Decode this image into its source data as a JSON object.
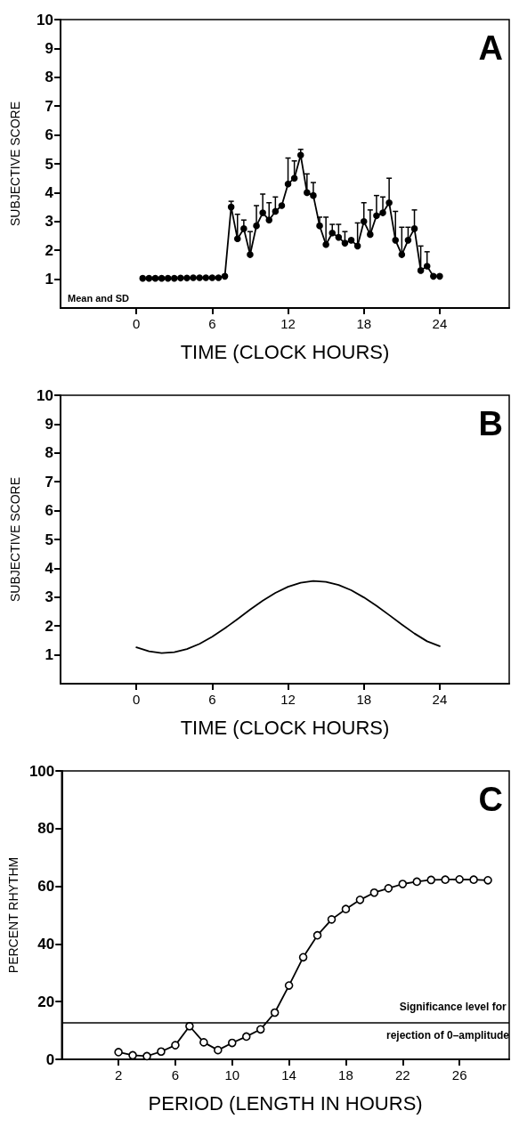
{
  "chart_data": [
    {
      "type": "line",
      "title": "A",
      "xlabel": "TIME (CLOCK HOURS)",
      "ylabel": "SUBJECTIVE SCORE",
      "annotations": [
        "Mean and SD"
      ],
      "x": [
        0.5,
        1,
        1.5,
        2,
        2.5,
        3,
        3.5,
        4,
        4.5,
        5,
        5.5,
        6,
        6.5,
        7,
        7.5,
        8,
        8.5,
        9,
        9.5,
        10,
        10.5,
        11,
        11.5,
        12,
        12.5,
        13,
        13.5,
        14,
        14.5,
        15,
        15.5,
        16,
        16.5,
        17,
        17.5,
        18,
        18.5,
        19,
        19.5,
        20,
        20.5,
        21,
        21.5,
        22,
        22.5,
        23,
        23.5,
        24
      ],
      "series": [
        {
          "color": "#000000",
          "values": [
            1.03,
            1.03,
            1.03,
            1.03,
            1.03,
            1.03,
            1.04,
            1.04,
            1.05,
            1.05,
            1.05,
            1.05,
            1.05,
            1.1,
            3.5,
            2.4,
            2.75,
            1.85,
            2.85,
            3.3,
            3.05,
            3.35,
            3.55,
            4.3,
            4.5,
            5.3,
            4.0,
            3.9,
            2.85,
            2.2,
            2.6,
            2.45,
            2.25,
            2.35,
            2.15,
            3.0,
            2.55,
            3.2,
            3.3,
            3.65,
            2.35,
            1.85,
            2.35,
            2.75,
            1.3,
            1.45,
            1.1,
            1.1
          ],
          "errors": [
            null,
            null,
            null,
            null,
            null,
            null,
            null,
            null,
            null,
            null,
            null,
            null,
            null,
            null,
            [
              3.5,
              3.7
            ],
            [
              2.4,
              3.25
            ],
            [
              2.75,
              3.05
            ],
            [
              1.85,
              2.65
            ],
            [
              2.85,
              3.55
            ],
            [
              3.3,
              3.95
            ],
            [
              3.05,
              3.65
            ],
            [
              3.35,
              3.85
            ],
            null,
            [
              4.3,
              5.2
            ],
            [
              4.5,
              5.1
            ],
            [
              5.3,
              5.5
            ],
            [
              4.0,
              4.65
            ],
            [
              3.9,
              4.35
            ],
            [
              2.85,
              3.15
            ],
            [
              2.2,
              3.15
            ],
            [
              2.6,
              2.9
            ],
            [
              2.45,
              2.9
            ],
            [
              2.25,
              2.65
            ],
            null,
            [
              2.15,
              2.95
            ],
            [
              3.0,
              3.65
            ],
            [
              2.55,
              3.4
            ],
            [
              3.2,
              3.9
            ],
            [
              3.3,
              3.85
            ],
            [
              3.65,
              4.5
            ],
            [
              2.35,
              3.35
            ],
            [
              1.85,
              2.8
            ],
            [
              2.35,
              2.8
            ],
            [
              2.75,
              3.4
            ],
            [
              1.3,
              2.15
            ],
            [
              1.45,
              1.95
            ],
            null,
            null
          ]
        }
      ],
      "xlim": [
        -6,
        29.5
      ],
      "xticks": [
        0,
        6,
        12,
        18,
        24
      ],
      "ylim": [
        0,
        10
      ],
      "yticks": [
        1,
        2,
        3,
        4,
        5,
        6,
        7,
        8,
        9,
        10
      ],
      "grid": false,
      "marker": "circle",
      "line_style": "solid"
    },
    {
      "type": "line",
      "title": "B",
      "xlabel": "TIME (CLOCK HOURS)",
      "ylabel": "SUBJECTIVE SCORE",
      "x": [
        0,
        1,
        2,
        3,
        4,
        5,
        6,
        7,
        8,
        9,
        10,
        11,
        12,
        13,
        14,
        15,
        16,
        17,
        18,
        19,
        20,
        21,
        22,
        23,
        24
      ],
      "series": [
        {
          "color": "#000000",
          "values": [
            1.26,
            1.12,
            1.06,
            1.09,
            1.2,
            1.38,
            1.63,
            1.92,
            2.24,
            2.57,
            2.88,
            3.15,
            3.36,
            3.5,
            3.56,
            3.53,
            3.42,
            3.24,
            2.99,
            2.7,
            2.38,
            2.05,
            1.74,
            1.47,
            1.3
          ]
        }
      ],
      "xlim": [
        -6,
        29.5
      ],
      "xticks": [
        0,
        6,
        12,
        18,
        24
      ],
      "ylim": [
        0,
        10
      ],
      "yticks": [
        1,
        2,
        3,
        4,
        5,
        6,
        7,
        8,
        9,
        10
      ],
      "grid": false,
      "marker": "none",
      "line_style": "solid"
    },
    {
      "type": "line",
      "title": "C",
      "xlabel": "PERIOD (LENGTH IN HOURS)",
      "ylabel": "PERCENT RHYTHM",
      "x": [
        2,
        3,
        4,
        5,
        6,
        7,
        8,
        9,
        10,
        11,
        12,
        13,
        14,
        15,
        16,
        17,
        18,
        19,
        20,
        21,
        22,
        23,
        24,
        25,
        26,
        27,
        28
      ],
      "series": [
        {
          "color": "#000000",
          "values": [
            2.5,
            1.4,
            1.1,
            2.7,
            4.9,
            11.5,
            5.9,
            3.2,
            5.7,
            7.9,
            10.4,
            16.2,
            25.6,
            35.4,
            43.0,
            48.5,
            52.1,
            55.3,
            57.8,
            59.3,
            60.8,
            61.6,
            62.2,
            62.3,
            62.4,
            62.3,
            62.1
          ]
        }
      ],
      "ref_lines": [
        {
          "axis": "y",
          "value": 12.7,
          "label": "Significance level for rejection of 0–amplitude",
          "color": "#000000"
        }
      ],
      "xlim": [
        -2,
        29.5
      ],
      "xticks": [
        2,
        6,
        10,
        14,
        18,
        22,
        26
      ],
      "ylim": [
        0,
        100
      ],
      "yticks": [
        0,
        20,
        40,
        60,
        80,
        100
      ],
      "grid": false,
      "marker": "circle",
      "line_style": "solid"
    }
  ]
}
